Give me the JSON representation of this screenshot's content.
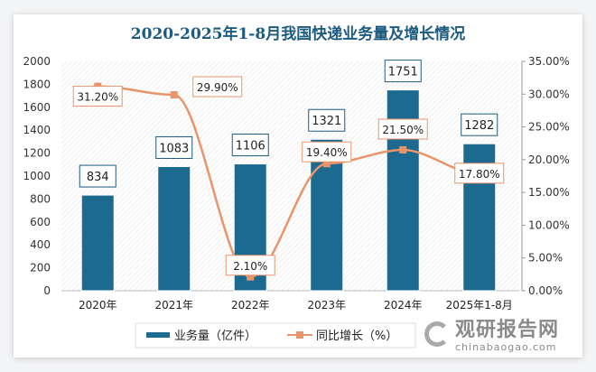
{
  "chart_data": {
    "type": "bar+line",
    "title": "2020-2025年1-8月我国快递业务量及增长情况",
    "categories": [
      "2020年",
      "2021年",
      "2022年",
      "2023年",
      "2024年",
      "2025年1-8月"
    ],
    "series": [
      {
        "name": "业务量（亿件）",
        "type": "bar",
        "axis": "left",
        "values": [
          834,
          1083,
          1106,
          1321,
          1751,
          1282
        ],
        "labels": [
          "834",
          "1083",
          "1106",
          "1321",
          "1751",
          "1282"
        ],
        "color": "#1d6a91"
      },
      {
        "name": "同比增长（%）",
        "type": "line",
        "axis": "right",
        "values": [
          31.2,
          29.9,
          2.1,
          19.4,
          21.5,
          17.8
        ],
        "labels": [
          "31.20%",
          "29.90%",
          "2.10%",
          "19.40%",
          "21.50%",
          "17.80%"
        ],
        "color": "#e8956a"
      }
    ],
    "left_axis": {
      "ylim": [
        0,
        2000
      ],
      "ticks": [
        "0",
        "200",
        "400",
        "600",
        "800",
        "1000",
        "1200",
        "1400",
        "1600",
        "1800",
        "2000"
      ]
    },
    "right_axis": {
      "ylim": [
        0,
        35
      ],
      "ticks": [
        "0.00%",
        "5.00%",
        "10.00%",
        "15.00%",
        "20.00%",
        "25.00%",
        "30.00%",
        "35.00%"
      ]
    },
    "grid": false,
    "legend": "bottom"
  },
  "watermark": {
    "name": "观研报告网",
    "url": "chinabaogao.com"
  }
}
